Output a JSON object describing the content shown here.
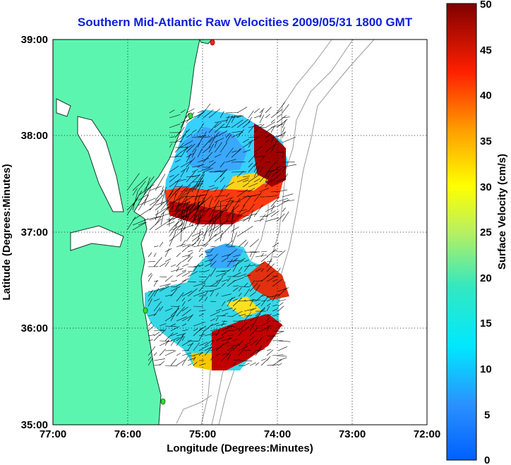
{
  "title": "Southern Mid-Atlantic Raw Velocities 2009/05/31 1800 GMT",
  "axes": {
    "xlabel": "Longitude (Degrees:Minutes)",
    "ylabel": "Latitude (Degrees:Minutes)",
    "xticks": [
      "77:00",
      "76:00",
      "75:00",
      "74:00",
      "73:00",
      "72:00"
    ],
    "yticks": [
      "39:00",
      "38:00",
      "37:00",
      "36:00",
      "35:00"
    ]
  },
  "colorbar": {
    "label": "Surface Velocity (cm/s)",
    "ticks": [
      "50",
      "45",
      "40",
      "35",
      "30",
      "25",
      "20",
      "15",
      "10",
      "5",
      "0"
    ],
    "colormap": "jet",
    "range": [
      0,
      50
    ]
  },
  "colors": {
    "title": "#0b1ed8",
    "land": "#5cf5b0",
    "coastline": "#1a3a2a",
    "bathymetry": "#999999",
    "station_marker": "#33dd33",
    "station_marker_red": "#ff2222"
  },
  "map": {
    "lon_range": [
      "77:00",
      "72:00"
    ],
    "lat_range": [
      "35:00",
      "39:00"
    ],
    "grid": true,
    "grid_style": "dotted"
  }
}
